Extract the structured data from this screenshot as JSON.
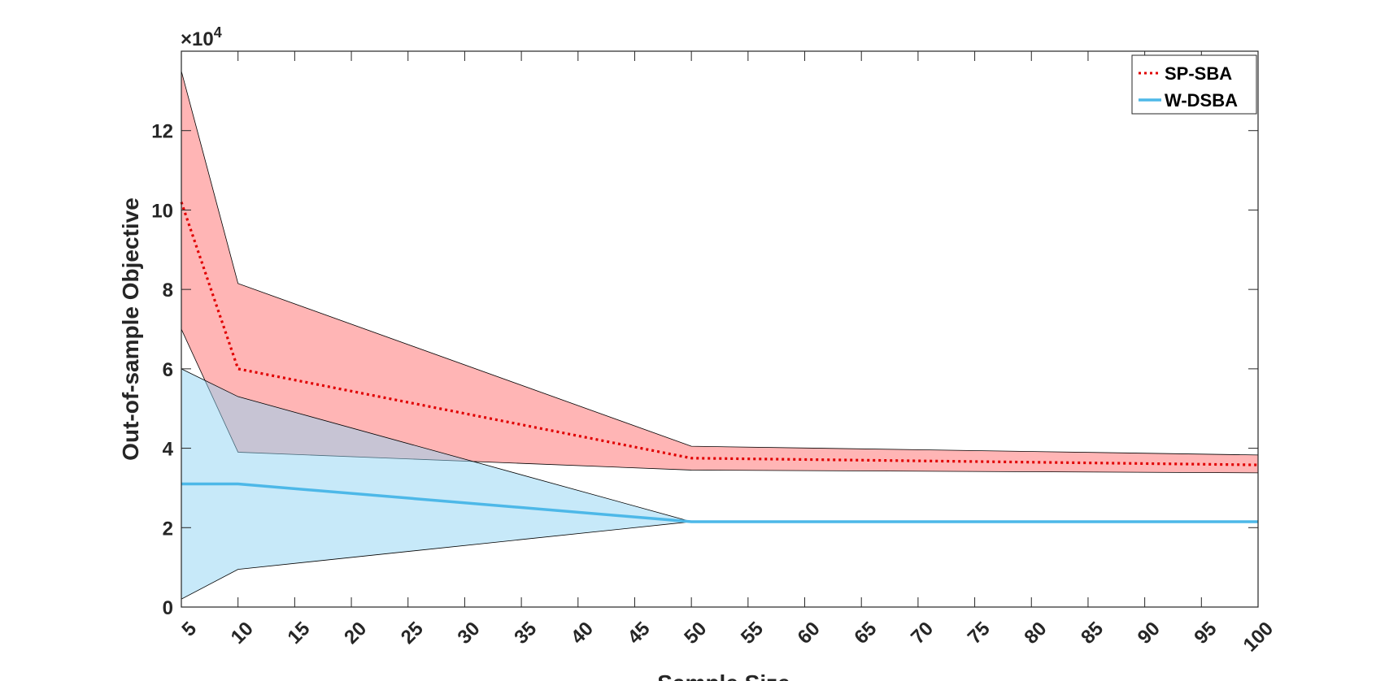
{
  "chart_data": {
    "type": "line",
    "xlabel": "Sample Size",
    "ylabel": "Out-of-sample Objective",
    "y_exponent_label": "×10",
    "y_exponent_power": "4",
    "xlim": [
      5,
      100
    ],
    "ylim": [
      0,
      140000
    ],
    "x_ticks": [
      5,
      10,
      15,
      20,
      25,
      30,
      35,
      40,
      45,
      50,
      55,
      60,
      65,
      70,
      75,
      80,
      85,
      90,
      95,
      100
    ],
    "x_tick_labels": [
      "5",
      "10",
      "15",
      "20",
      "25",
      "30",
      "35",
      "40",
      "45",
      "50",
      "55",
      "60",
      "65",
      "70",
      "75",
      "80",
      "85",
      "90",
      "95",
      "100"
    ],
    "y_ticks": [
      0,
      20000,
      40000,
      60000,
      80000,
      100000,
      120000
    ],
    "y_tick_labels": [
      "0",
      "2",
      "4",
      "6",
      "8",
      "10",
      "12"
    ],
    "x": [
      5,
      10,
      50,
      100
    ],
    "legend_position": "top-right",
    "grid": false,
    "series": [
      {
        "name": "SP-SBA",
        "color": "#e00000",
        "band_color": "#ff6b6b",
        "line_style": "dotted",
        "values": [
          102000,
          60000,
          37500,
          35800
        ],
        "upper": [
          135000,
          81500,
          40500,
          38300
        ],
        "lower": [
          70000,
          39000,
          34500,
          33800
        ]
      },
      {
        "name": "W-DSBA",
        "color": "#4db8e8",
        "band_color": "#8fd3f3",
        "line_style": "solid",
        "values": [
          31000,
          31000,
          21500,
          21500
        ],
        "upper": [
          60000,
          53000,
          21500,
          21500
        ],
        "lower": [
          2000,
          9500,
          21500,
          21500
        ]
      }
    ]
  }
}
